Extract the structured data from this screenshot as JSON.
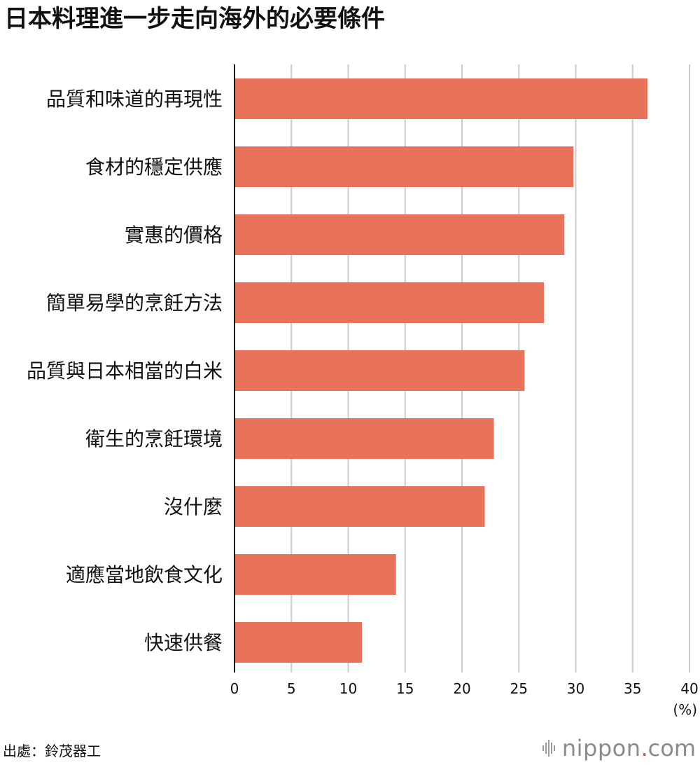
{
  "title": "日本料理進一步走向海外的必要條件",
  "source": "出處：鈴茂器工",
  "brand": {
    "name": "nippon",
    "dot": ".",
    "tld": "com",
    "icon": "sound-wave-icon"
  },
  "chart_data": {
    "type": "bar",
    "orientation": "horizontal",
    "title": "日本料理進一步走向海外的必要條件",
    "categories": [
      "品質和味道的再現性",
      "食材的穩定供應",
      "實惠的價格",
      "簡單易學的烹飪方法",
      "品質與日本相當的白米",
      "衛生的烹飪環境",
      "沒什麼",
      "適應當地飲食文化",
      "快速供餐"
    ],
    "values": [
      36.3,
      29.8,
      29.0,
      27.2,
      25.5,
      22.8,
      22.0,
      14.2,
      11.2
    ],
    "xlim": [
      0,
      40
    ],
    "xticks": [
      "0",
      "5",
      "10",
      "15",
      "20",
      "25",
      "30",
      "35",
      "40"
    ],
    "unit": "(%)",
    "grid": true,
    "bar_color": "#e8725a",
    "grid_color": "#cccccc"
  }
}
